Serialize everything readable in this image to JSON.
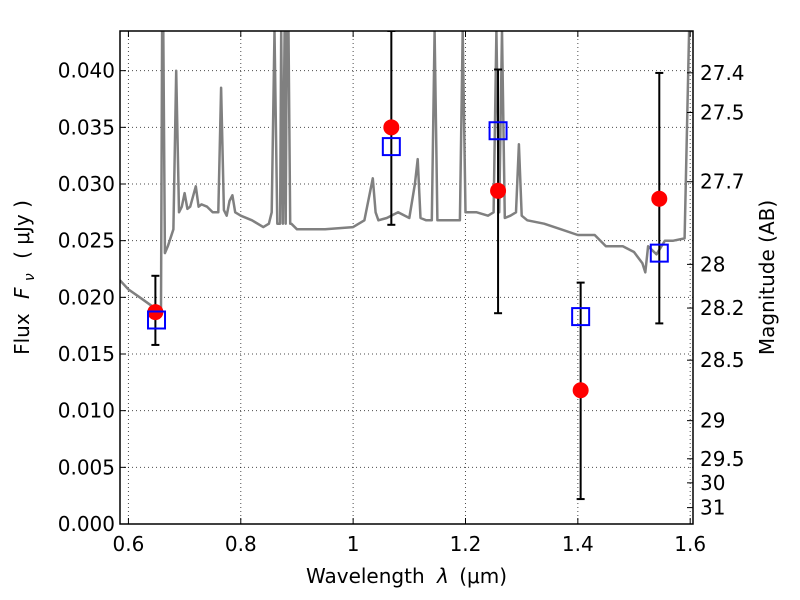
{
  "chart_data": {
    "type": "scatter",
    "xlabel": "Wavelength",
    "xlabel_symbol": "λ",
    "xlabel_unit": "(μm)",
    "ylabel": "Flux",
    "ylabel_symbol": "F",
    "ylabel_subscript": "ν",
    "ylabel_unit": "( μJy )",
    "y2label": "Magnitude (AB)",
    "xlim": [
      0.585,
      1.605
    ],
    "ylim": [
      0.0,
      0.0435
    ],
    "grid": true,
    "x_ticks": [
      0.6,
      0.8,
      1.0,
      1.2,
      1.4,
      1.6
    ],
    "x_tick_labels": [
      "0.6",
      "0.8",
      "1",
      "1.2",
      "1.4",
      "1.6"
    ],
    "y_ticks": [
      0.0,
      0.005,
      0.01,
      0.015,
      0.02,
      0.025,
      0.03,
      0.035,
      0.04
    ],
    "y_tick_labels": [
      "0.000",
      "0.005",
      "0.010",
      "0.015",
      "0.020",
      "0.025",
      "0.030",
      "0.035",
      "0.040"
    ],
    "y2_ticks": [
      27.4,
      27.5,
      27.7,
      28.0,
      28.2,
      28.5,
      29.0,
      29.5,
      30.0,
      31.0
    ],
    "y2_tick_labels": [
      "27.4",
      "27.5",
      "27.7",
      "28",
      "28.2",
      "28.5",
      "29",
      "29.5",
      "30",
      "31"
    ],
    "series": [
      {
        "kind": "line",
        "color": "#808080",
        "x": [
          0.585,
          0.6,
          0.62,
          0.64,
          0.652,
          0.658,
          0.66,
          0.662,
          0.665,
          0.67,
          0.68,
          0.685,
          0.69,
          0.695,
          0.7,
          0.705,
          0.71,
          0.72,
          0.725,
          0.73,
          0.74,
          0.75,
          0.76,
          0.765,
          0.77,
          0.775,
          0.78,
          0.785,
          0.79,
          0.8,
          0.82,
          0.84,
          0.85,
          0.855,
          0.86,
          0.865,
          0.87,
          0.872,
          0.875,
          0.878,
          0.88,
          0.882,
          0.885,
          0.888,
          0.89,
          0.9,
          0.95,
          1.0,
          1.02,
          1.035,
          1.04,
          1.045,
          1.06,
          1.08,
          1.1,
          1.11,
          1.115,
          1.12,
          1.13,
          1.14,
          1.145,
          1.15,
          1.155,
          1.17,
          1.19,
          1.195,
          1.2,
          1.205,
          1.22,
          1.24,
          1.25,
          1.255,
          1.26,
          1.265,
          1.27,
          1.28,
          1.29,
          1.295,
          1.3,
          1.31,
          1.34,
          1.37,
          1.4,
          1.43,
          1.45,
          1.48,
          1.5,
          1.515,
          1.52,
          1.525,
          1.54,
          1.555,
          1.57,
          1.59,
          1.598,
          1.6,
          1.605
        ],
        "y": [
          0.0215,
          0.0207,
          0.02,
          0.0193,
          0.0188,
          0.019,
          0.0435,
          0.0435,
          0.0239,
          0.0245,
          0.026,
          0.04,
          0.0275,
          0.028,
          0.0292,
          0.0278,
          0.028,
          0.0298,
          0.028,
          0.0282,
          0.028,
          0.0275,
          0.0275,
          0.0385,
          0.0277,
          0.0272,
          0.0285,
          0.029,
          0.0275,
          0.0272,
          0.0268,
          0.0262,
          0.0265,
          0.0275,
          0.0435,
          0.0265,
          0.0265,
          0.0435,
          0.0265,
          0.0435,
          0.0265,
          0.0435,
          0.0435,
          0.0265,
          0.0265,
          0.026,
          0.026,
          0.0262,
          0.0268,
          0.0305,
          0.0275,
          0.0268,
          0.027,
          0.0275,
          0.027,
          0.03,
          0.0322,
          0.027,
          0.0268,
          0.0268,
          0.0435,
          0.0268,
          0.0268,
          0.0268,
          0.0268,
          0.0435,
          0.0275,
          0.0275,
          0.0275,
          0.0272,
          0.0275,
          0.0435,
          0.0275,
          0.0435,
          0.027,
          0.0272,
          0.0275,
          0.0335,
          0.0272,
          0.0268,
          0.0265,
          0.026,
          0.0255,
          0.0255,
          0.0245,
          0.0245,
          0.024,
          0.023,
          0.0222,
          0.0245,
          0.0238,
          0.025,
          0.025,
          0.0252,
          0.0435,
          0.0435,
          0.0435
        ]
      },
      {
        "kind": "points",
        "marker": "circle",
        "color": "#ff0000",
        "x": [
          0.648,
          1.068,
          1.258,
          1.405,
          1.545
        ],
        "y": [
          0.0187,
          0.035,
          0.0294,
          0.0118,
          0.0287
        ],
        "yerr_low": [
          0.0158,
          0.0264,
          0.0186,
          0.0022,
          0.0177
        ],
        "yerr_high": [
          0.0219,
          0.0435,
          0.0401,
          0.0213,
          0.0398
        ]
      },
      {
        "kind": "points",
        "marker": "square",
        "color": "#0000ff",
        "x": [
          0.65,
          1.068,
          1.258,
          1.405,
          1.545
        ],
        "y": [
          0.018,
          0.0333,
          0.0347,
          0.0183,
          0.0239
        ]
      }
    ]
  }
}
